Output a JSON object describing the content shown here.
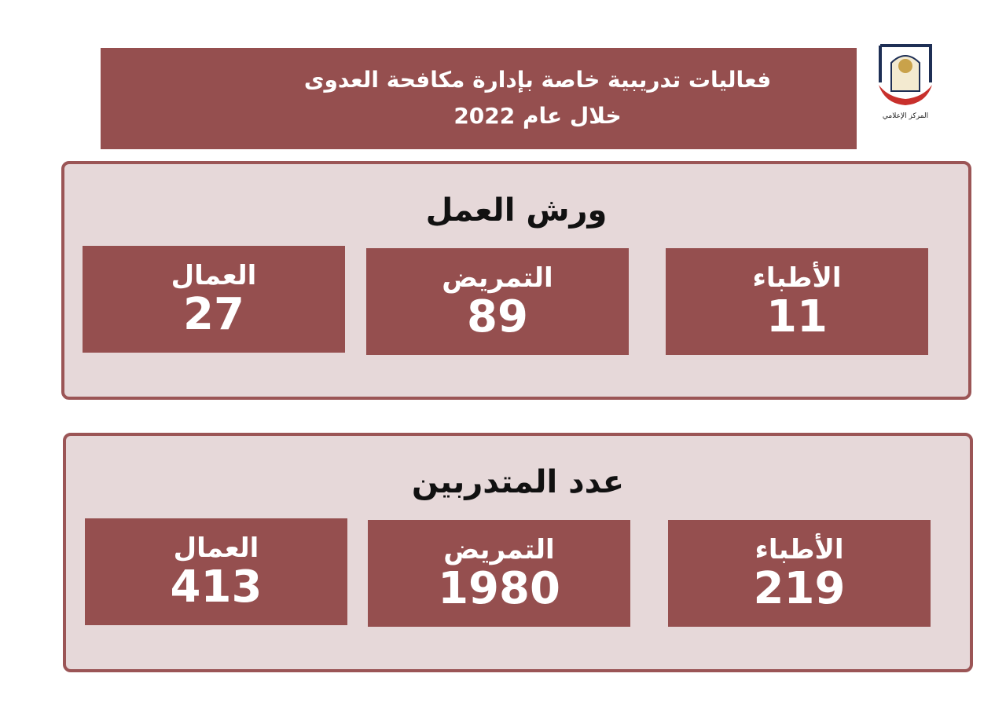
{
  "header": {
    "title_line1": "فعاليات تدريبية خاصة بإدارة مكافحة العدوى",
    "title_line2": "خلال عام 2022"
  },
  "logo": {
    "text": "المركز الإعلامي"
  },
  "colors": {
    "header_bg": "#954f4f",
    "panel_bg": "#e6d8d9",
    "panel_border": "#9b5556"
  },
  "sections": [
    {
      "title": "ورش العمل",
      "items": [
        {
          "label": "الأطباء",
          "value": "11"
        },
        {
          "label": "التمريض",
          "value": "89"
        },
        {
          "label": "العمال",
          "value": "27"
        }
      ]
    },
    {
      "title": "عدد المتدربين",
      "items": [
        {
          "label": "الأطباء",
          "value": "219"
        },
        {
          "label": "التمريض",
          "value": "1980"
        },
        {
          "label": "العمال",
          "value": "413"
        }
      ]
    }
  ]
}
